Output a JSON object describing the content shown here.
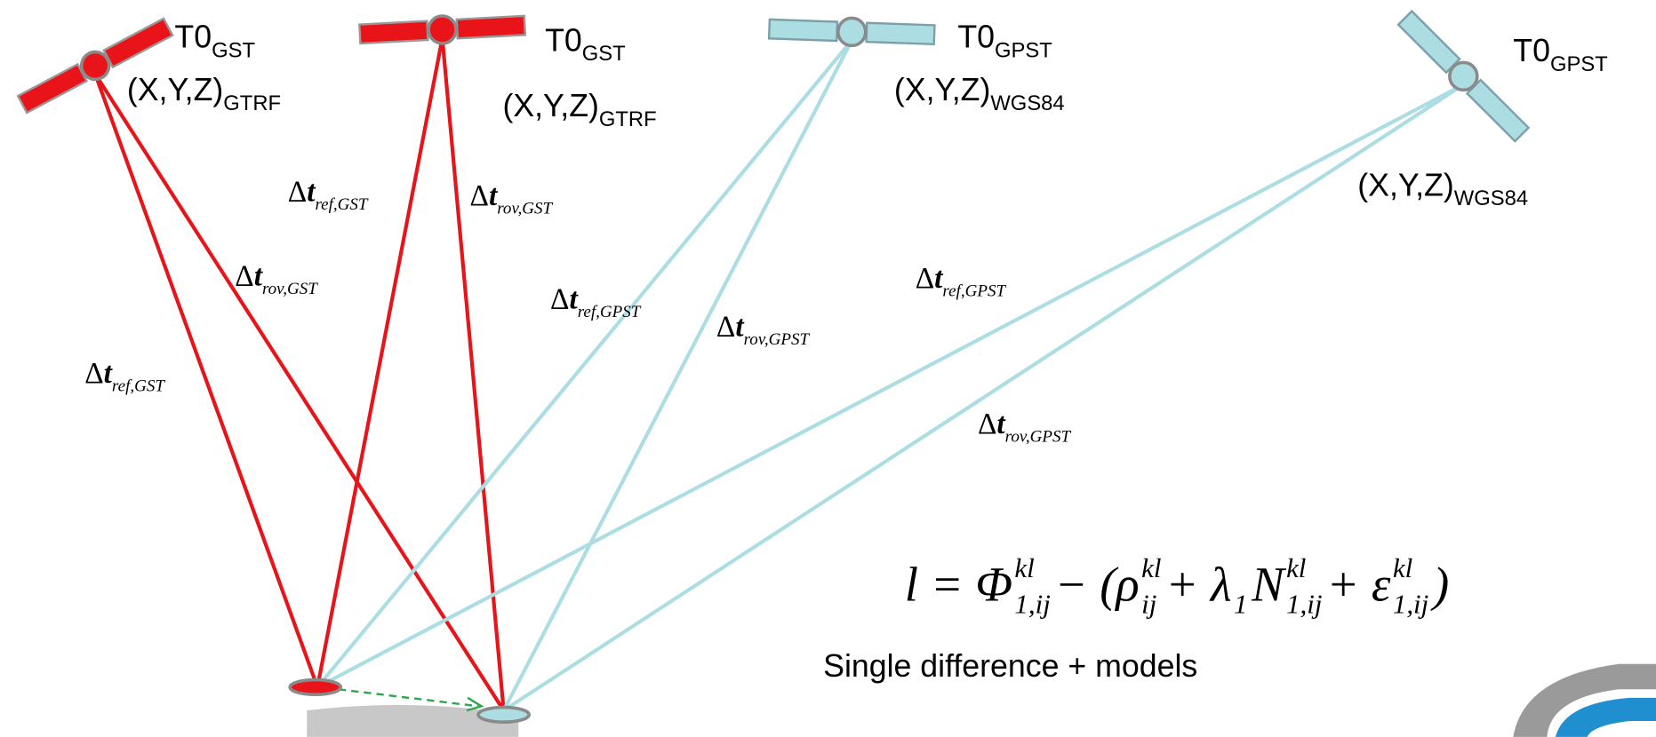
{
  "satellites": [
    {
      "time": "T0",
      "time_sub": "GST",
      "coords": "(X,Y,Z)",
      "coords_sub": "GTRF"
    },
    {
      "time": "T0",
      "time_sub": "GST",
      "coords": "(X,Y,Z)",
      "coords_sub": "GTRF"
    },
    {
      "time": "T0",
      "time_sub": "GPST",
      "coords": "(X,Y,Z)",
      "coords_sub": "WGS84"
    },
    {
      "time": "T0",
      "time_sub": "GPST",
      "coords": "(X,Y,Z)",
      "coords_sub": "WGS84"
    }
  ],
  "links": [
    {
      "symbol": "Δ",
      "var": "t",
      "sub": "ref,GST"
    },
    {
      "symbol": "Δ",
      "var": "t",
      "sub": "rov,GST"
    },
    {
      "symbol": "Δ",
      "var": "t",
      "sub": "rov,GST"
    },
    {
      "symbol": "Δ",
      "var": "t",
      "sub": "ref,GST"
    },
    {
      "symbol": "Δ",
      "var": "t",
      "sub": "ref,GPST"
    },
    {
      "symbol": "Δ",
      "var": "t",
      "sub": "rov,GPST"
    },
    {
      "symbol": "Δ",
      "var": "t",
      "sub": "ref,GPST"
    },
    {
      "symbol": "Δ",
      "var": "t",
      "sub": "rov,GPST"
    }
  ],
  "formula": [
    {
      "base": "l = Φ",
      "sup": "kl",
      "sub": "1,ij"
    },
    {
      "base": " − (ρ",
      "sup": "kl",
      "sub": "ij"
    },
    {
      "base": " + λ",
      "sub": "1"
    },
    {
      "base": "N",
      "sup": "kl",
      "sub": "1,ij"
    },
    {
      "base": " + ε",
      "sup": "kl",
      "sub": "1,ij"
    },
    {
      "base": ")"
    }
  ],
  "caption": "Single difference + models"
}
